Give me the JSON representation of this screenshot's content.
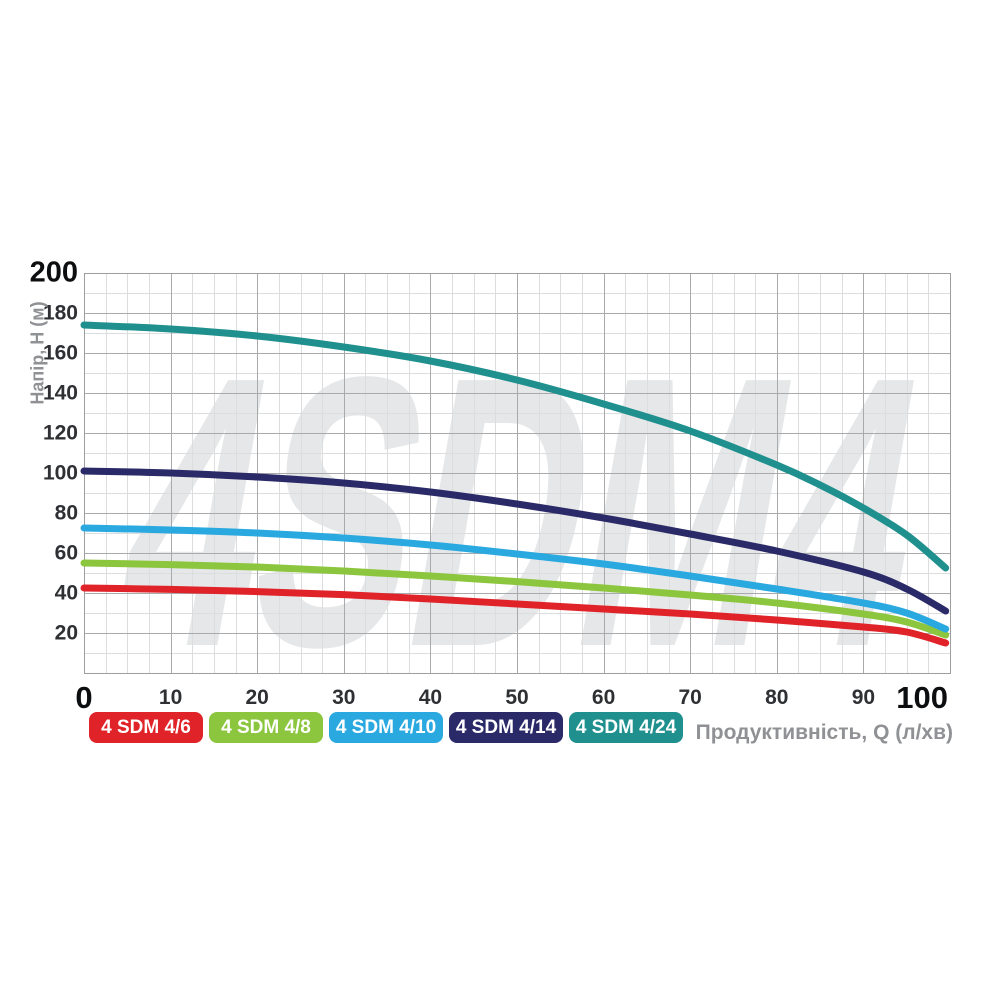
{
  "chart_data": {
    "type": "line",
    "watermark_text": "4SDM4",
    "xlabel": "Продуктивність, Q (л/хв)",
    "ylabel": "Напір, H (м)",
    "xlim": [
      0,
      100
    ],
    "ylim": [
      0,
      200
    ],
    "x_ticks": [
      0,
      10,
      20,
      30,
      40,
      50,
      60,
      70,
      80,
      90,
      100
    ],
    "x_emphasized_ticks": [
      0,
      100
    ],
    "y_ticks": [
      20,
      40,
      60,
      80,
      100,
      120,
      140,
      160,
      180,
      200
    ],
    "y_emphasized_ticks": [
      200
    ],
    "x_minor_step": 2.5,
    "y_minor_step": 10,
    "grid": true,
    "legend_position": "bottom-left",
    "series": [
      {
        "name": "4 SDM 4/6",
        "color": "#e02329",
        "points": [
          [
            0,
            42.5
          ],
          [
            10,
            41.8
          ],
          [
            20,
            40.7
          ],
          [
            30,
            39.2
          ],
          [
            40,
            37
          ],
          [
            50,
            34.5
          ],
          [
            60,
            32
          ],
          [
            70,
            29.5
          ],
          [
            80,
            26.5
          ],
          [
            90,
            23
          ],
          [
            95,
            20.5
          ],
          [
            99.5,
            15
          ]
        ]
      },
      {
        "name": "4 SDM 4/8",
        "color": "#8cc63e",
        "points": [
          [
            0,
            55
          ],
          [
            10,
            54.2
          ],
          [
            20,
            53
          ],
          [
            30,
            51
          ],
          [
            40,
            48.5
          ],
          [
            50,
            45.7
          ],
          [
            60,
            42.5
          ],
          [
            70,
            39
          ],
          [
            80,
            35
          ],
          [
            90,
            29.5
          ],
          [
            95,
            25.5
          ],
          [
            99.5,
            19
          ]
        ]
      },
      {
        "name": "4 SDM 4/10",
        "color": "#2aa9e0",
        "points": [
          [
            0,
            72.5
          ],
          [
            10,
            71.5
          ],
          [
            20,
            70
          ],
          [
            30,
            67.5
          ],
          [
            40,
            64
          ],
          [
            50,
            59.5
          ],
          [
            60,
            54.5
          ],
          [
            70,
            48.5
          ],
          [
            80,
            42
          ],
          [
            90,
            35
          ],
          [
            95,
            30
          ],
          [
            99.5,
            22
          ]
        ]
      },
      {
        "name": "4 SDM 4/14",
        "color": "#2b2a68",
        "points": [
          [
            0,
            101
          ],
          [
            10,
            100
          ],
          [
            20,
            98
          ],
          [
            30,
            95
          ],
          [
            40,
            90.5
          ],
          [
            50,
            84.5
          ],
          [
            60,
            77.5
          ],
          [
            70,
            69.5
          ],
          [
            80,
            61
          ],
          [
            90,
            50.5
          ],
          [
            95,
            42
          ],
          [
            99.5,
            31
          ]
        ]
      },
      {
        "name": "4 SDM 4/24",
        "color": "#1f908e",
        "points": [
          [
            0,
            174
          ],
          [
            10,
            172
          ],
          [
            20,
            168.5
          ],
          [
            30,
            163
          ],
          [
            40,
            156
          ],
          [
            50,
            146.5
          ],
          [
            60,
            134.5
          ],
          [
            70,
            121
          ],
          [
            80,
            104
          ],
          [
            85,
            94
          ],
          [
            90,
            82.5
          ],
          [
            95,
            69
          ],
          [
            99.5,
            52.5
          ]
        ]
      }
    ]
  },
  "legend": {
    "text_color": "#ffffff"
  },
  "theme": {
    "background": "#ffffff",
    "grid_minor_color": "#dcdddf",
    "grid_major_color": "#a8aaac",
    "plot_border_color": "#9c9ea0",
    "watermark_color": "#e6e7e8",
    "tick_label_color": "#2e3033",
    "emphasized_tick_color": "#0d0e10",
    "axis_title_color": "#8f9194"
  }
}
